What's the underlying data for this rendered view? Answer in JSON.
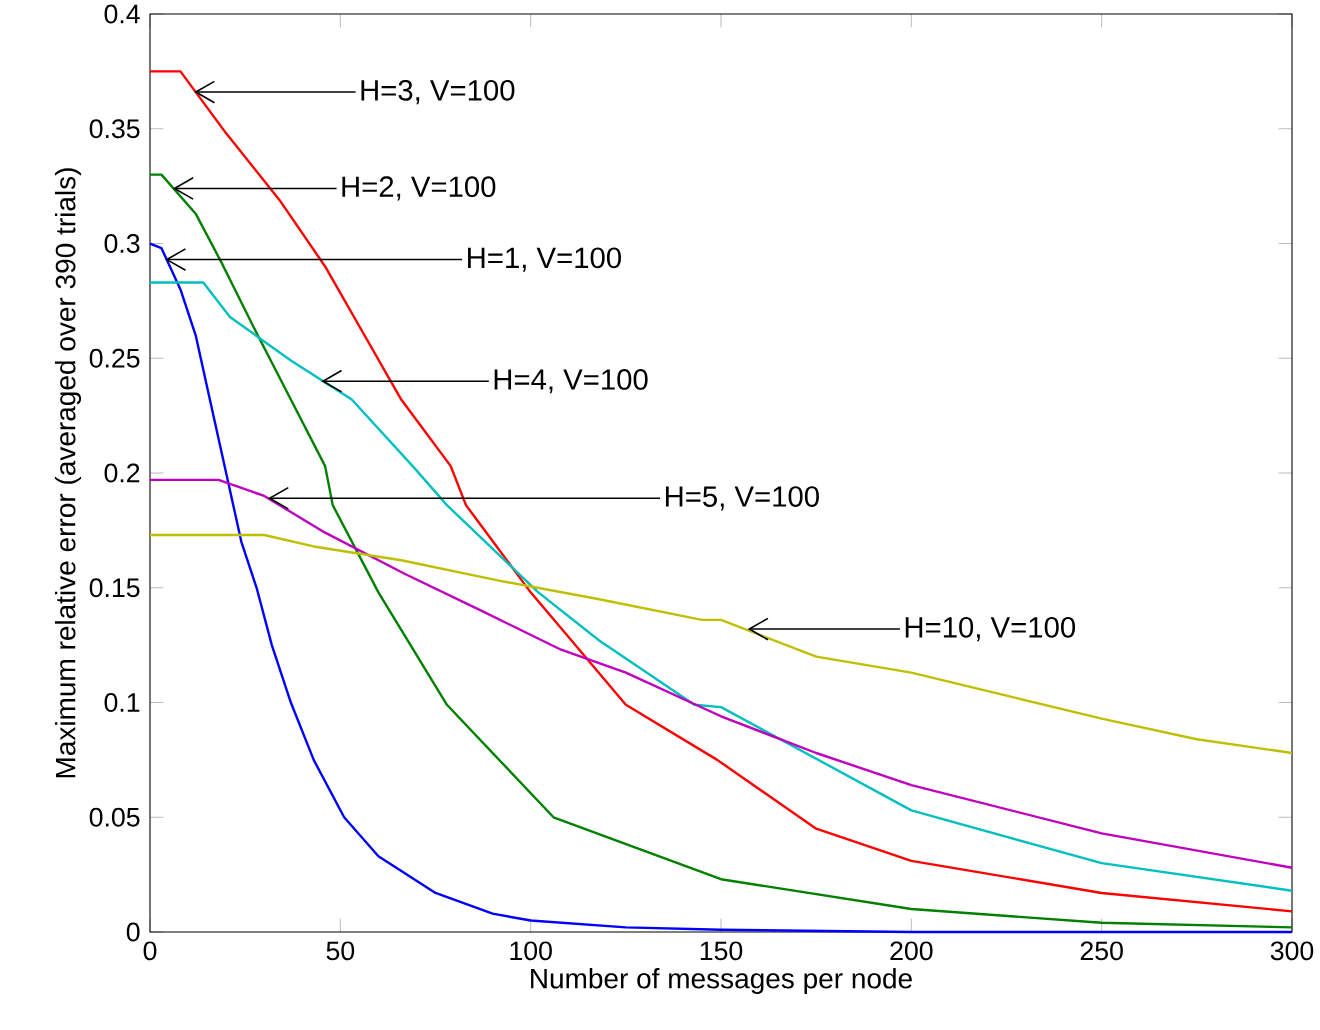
{
  "chart_data": {
    "type": "line",
    "xlabel": "Number of messages per node",
    "ylabel": "Maximum relative error (averaged over 390 trials)",
    "xlim": [
      0,
      300
    ],
    "ylim": [
      0,
      0.4
    ],
    "xticks": [
      0,
      50,
      100,
      150,
      200,
      250,
      300
    ],
    "yticks": [
      0,
      0.05,
      0.1,
      0.15,
      0.2,
      0.25,
      0.3,
      0.35,
      0.4
    ],
    "grid": false,
    "marker": "none",
    "line_style": "solid",
    "series": [
      {
        "color": "#0000ff",
        "x": [
          0,
          3,
          8,
          12,
          16,
          20,
          24,
          28,
          32,
          37,
          43,
          51,
          60,
          75,
          90,
          100,
          125,
          150,
          200,
          300
        ],
        "values": [
          0.3,
          0.298,
          0.28,
          0.26,
          0.23,
          0.2,
          0.17,
          0.15,
          0.125,
          0.1,
          0.075,
          0.05,
          0.033,
          0.017,
          0.008,
          0.005,
          0.002,
          0.001,
          0,
          0
        ]
      },
      {
        "color": "#008000",
        "x": [
          0,
          3,
          12,
          19,
          28,
          37,
          46,
          48,
          60,
          78,
          106,
          150,
          200,
          250,
          300
        ],
        "values": [
          0.33,
          0.33,
          0.313,
          0.291,
          0.261,
          0.232,
          0.203,
          0.186,
          0.148,
          0.099,
          0.05,
          0.023,
          0.01,
          0.004,
          0.002
        ]
      },
      {
        "color": "#ff0000",
        "x": [
          0,
          8,
          20,
          34,
          46,
          56,
          66,
          79,
          83,
          100,
          125,
          149,
          175,
          200,
          250,
          300
        ],
        "values": [
          0.375,
          0.375,
          0.348,
          0.319,
          0.29,
          0.261,
          0.232,
          0.203,
          0.186,
          0.148,
          0.099,
          0.075,
          0.045,
          0.031,
          0.017,
          0.009
        ]
      },
      {
        "color": "#00bfbf",
        "x": [
          0,
          14,
          21,
          37,
          53,
          69,
          78,
          102,
          118,
          143,
          150,
          200,
          250,
          300
        ],
        "values": [
          0.283,
          0.283,
          0.268,
          0.249,
          0.232,
          0.203,
          0.186,
          0.148,
          0.127,
          0.099,
          0.098,
          0.053,
          0.03,
          0.018
        ]
      },
      {
        "color": "#bf00bf",
        "x": [
          0,
          18,
          30,
          46,
          67,
          87,
          108,
          125,
          150,
          175,
          200,
          250,
          300
        ],
        "values": [
          0.197,
          0.197,
          0.19,
          0.174,
          0.156,
          0.14,
          0.123,
          0.113,
          0.094,
          0.078,
          0.064,
          0.043,
          0.028
        ]
      },
      {
        "color": "#bfbf00",
        "x": [
          0,
          30,
          43,
          66,
          92,
          118,
          145,
          150,
          175,
          200,
          225,
          250,
          275,
          300
        ],
        "values": [
          0.173,
          0.173,
          0.168,
          0.162,
          0.153,
          0.145,
          0.136,
          0.136,
          0.12,
          0.113,
          0.103,
          0.093,
          0.084,
          0.078
        ]
      }
    ],
    "annotations": [
      {
        "text": "H=3, V=100",
        "x": 11.6,
        "y": 0.366
      },
      {
        "text": "H=2, V=100",
        "x": 6,
        "y": 0.324
      },
      {
        "text": "H=1, V=100",
        "x": 4,
        "y": 0.293
      },
      {
        "text": "H=4, V=100",
        "x": 45,
        "y": 0.24
      },
      {
        "text": "H=5, V=100",
        "x": 31,
        "y": 0.189
      },
      {
        "text": "H=10, V=100",
        "x": 157,
        "y": 0.132
      }
    ]
  }
}
